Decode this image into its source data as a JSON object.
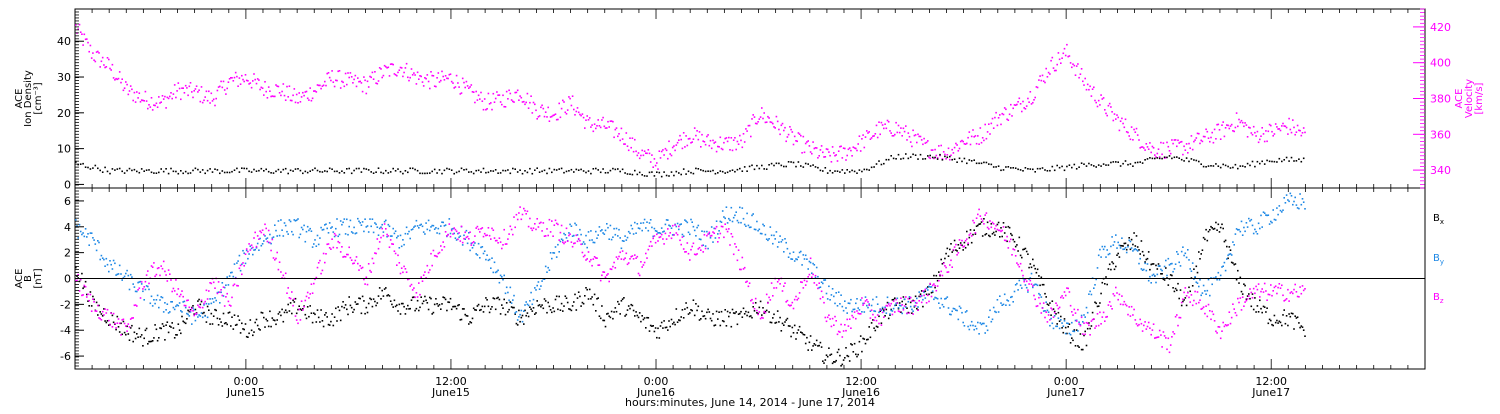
{
  "colors": {
    "black": "#000000",
    "magenta": "#ff00ff",
    "blue": "#1e88e5",
    "frame": "#000000"
  },
  "xaxis": {
    "title": "hours:minutes, June 14, 2014 - June 17, 2014",
    "range_hours": [
      0,
      79
    ],
    "tick_labels": [
      {
        "t": 10,
        "time": "0:00",
        "day": "June15"
      },
      {
        "t": 22,
        "time": "12:00",
        "day": "June15"
      },
      {
        "t": 34,
        "time": "0:00",
        "day": "June16"
      },
      {
        "t": 46,
        "time": "12:00",
        "day": "June16"
      },
      {
        "t": 58,
        "time": "0:00",
        "day": "June17"
      },
      {
        "t": 70,
        "time": "12:00",
        "day": "June17"
      }
    ]
  },
  "chart_data": [
    {
      "type": "scatter",
      "panel": "top",
      "left_axis": {
        "label_lines": [
          "ACE",
          "Ion Density",
          "[cm⁻³]"
        ],
        "ylim": [
          -1,
          49
        ],
        "ticks": [
          0,
          10,
          20,
          30,
          40
        ]
      },
      "right_axis": {
        "label_lines": [
          "ACE",
          "Velocity",
          "[km/s]"
        ],
        "ylim": [
          330,
          430
        ],
        "ticks": [
          340,
          360,
          380,
          400,
          420
        ]
      },
      "series": [
        {
          "axis": "right",
          "color": "#ff00ff",
          "x": [
            0,
            1,
            2,
            3,
            4,
            5,
            6,
            7,
            8,
            9,
            10,
            11,
            12,
            13,
            14,
            15,
            16,
            17,
            18,
            19,
            20,
            21,
            22,
            23,
            24,
            25,
            26,
            27,
            28,
            29,
            30,
            31,
            32,
            33,
            34,
            35,
            36,
            37,
            38,
            39,
            40,
            41,
            42,
            43,
            44,
            45,
            46,
            47,
            48,
            49,
            50,
            51,
            52,
            53,
            54,
            55,
            56,
            57,
            58,
            59,
            60,
            61,
            62,
            63,
            64,
            65,
            66,
            67,
            68,
            69,
            70,
            71,
            72
          ],
          "y": [
            420,
            405,
            398,
            385,
            380,
            378,
            385,
            384,
            380,
            390,
            392,
            386,
            385,
            380,
            385,
            392,
            390,
            388,
            395,
            398,
            392,
            390,
            392,
            384,
            378,
            380,
            384,
            374,
            372,
            378,
            366,
            365,
            360,
            350,
            345,
            355,
            360,
            356,
            355,
            356,
            372,
            366,
            358,
            352,
            348,
            350,
            356,
            363,
            364,
            358,
            352,
            350,
            357,
            360,
            370,
            375,
            383,
            398,
            406,
            390,
            378,
            368,
            360,
            352,
            352,
            354,
            358,
            362,
            368,
            360,
            362,
            365,
            360
          ]
        },
        {
          "axis": "left",
          "color": "#000000",
          "x": [
            0,
            2,
            4,
            6,
            8,
            10,
            12,
            14,
            16,
            18,
            20,
            22,
            24,
            26,
            28,
            30,
            32,
            34,
            36,
            38,
            40,
            42,
            44,
            46,
            48,
            50,
            52,
            54,
            56,
            58,
            60,
            62,
            64,
            66,
            68,
            70,
            72
          ],
          "y": [
            6,
            4,
            4,
            4,
            4,
            4,
            4,
            4,
            4,
            4,
            4,
            4,
            4,
            4,
            4,
            4,
            4,
            3,
            4,
            4,
            5,
            6,
            4,
            4,
            8,
            8,
            7,
            5,
            4,
            5,
            6,
            6,
            8,
            6,
            5,
            7,
            7
          ]
        }
      ]
    },
    {
      "type": "scatter",
      "panel": "bottom",
      "left_axis": {
        "label_lines": [
          "ACE",
          "B",
          "[nT]"
        ],
        "ylim": [
          -7,
          7
        ],
        "ticks": [
          -6,
          -4,
          -2,
          0,
          2,
          4,
          6
        ]
      },
      "series": [
        {
          "name": "Bx",
          "legend_main": "B",
          "legend_sub": "x",
          "color": "#000000",
          "x": [
            0,
            1,
            2,
            3,
            4,
            5,
            6,
            7,
            8,
            9,
            10,
            11,
            12,
            13,
            14,
            15,
            16,
            17,
            18,
            19,
            20,
            21,
            22,
            23,
            24,
            25,
            26,
            27,
            28,
            29,
            30,
            31,
            32,
            33,
            34,
            35,
            36,
            37,
            38,
            39,
            40,
            41,
            42,
            43,
            44,
            45,
            46,
            47,
            48,
            49,
            50,
            51,
            52,
            53,
            54,
            55,
            56,
            57,
            58,
            59,
            60,
            61,
            62,
            63,
            64,
            65,
            66,
            67,
            68,
            69,
            70,
            71,
            72
          ],
          "y": [
            1,
            -2,
            -3,
            -4,
            -4.5,
            -4,
            -4,
            -2,
            -3,
            -3,
            -4,
            -3,
            -3,
            -2,
            -3,
            -3,
            -2,
            -2,
            -1,
            -2,
            -2,
            -2,
            -2,
            -3,
            -2,
            -2,
            -3,
            -2,
            -2,
            -2,
            -1,
            -3,
            -2,
            -3,
            -4,
            -3,
            -2,
            -3,
            -3,
            -3,
            -2,
            -3,
            -4,
            -5,
            -6,
            -6,
            -5,
            -3,
            -2,
            -2,
            -1,
            2,
            3,
            4,
            4,
            3,
            1,
            -2,
            -4,
            -5,
            -1,
            2,
            3,
            1,
            0,
            -2,
            3,
            4,
            0,
            -2,
            -3,
            -3,
            -4
          ]
        },
        {
          "name": "By",
          "legend_main": "B",
          "legend_sub": "y",
          "color": "#1e88e5",
          "x": [
            0,
            1,
            2,
            3,
            4,
            5,
            6,
            7,
            8,
            9,
            10,
            11,
            12,
            13,
            14,
            15,
            16,
            17,
            18,
            19,
            20,
            21,
            22,
            23,
            24,
            25,
            26,
            27,
            28,
            29,
            30,
            31,
            32,
            33,
            34,
            35,
            36,
            37,
            38,
            39,
            40,
            41,
            42,
            43,
            44,
            45,
            46,
            47,
            48,
            49,
            50,
            51,
            52,
            53,
            54,
            55,
            56,
            57,
            58,
            59,
            60,
            61,
            62,
            63,
            64,
            65,
            66,
            67,
            68,
            69,
            70,
            71,
            72
          ],
          "y": [
            4,
            3,
            1,
            0,
            -1,
            -2,
            -2,
            -3,
            -2,
            0,
            2,
            3,
            4,
            4,
            3,
            4,
            4,
            4,
            4,
            3,
            4,
            4,
            4,
            3,
            2,
            0,
            -3,
            -1,
            2,
            4,
            3,
            4,
            3,
            4,
            4,
            4,
            4,
            3,
            5,
            5,
            4,
            3,
            2,
            1,
            -1,
            -2,
            -2,
            -2,
            -2,
            -2,
            -1,
            -2,
            -3,
            -4,
            -2,
            -1,
            0,
            -3,
            -4,
            -3,
            2,
            3,
            2,
            0,
            1,
            2,
            -1,
            0,
            4,
            4,
            5,
            6,
            6
          ]
        },
        {
          "name": "Bz",
          "legend_main": "B",
          "legend_sub": "z",
          "color": "#ff00ff",
          "x": [
            0,
            1,
            2,
            3,
            4,
            5,
            6,
            7,
            8,
            9,
            10,
            11,
            12,
            13,
            14,
            15,
            16,
            17,
            18,
            19,
            20,
            21,
            22,
            23,
            24,
            25,
            26,
            27,
            28,
            29,
            30,
            31,
            32,
            33,
            34,
            35,
            36,
            37,
            38,
            39,
            40,
            41,
            42,
            43,
            44,
            45,
            46,
            47,
            48,
            49,
            50,
            51,
            52,
            53,
            54,
            55,
            56,
            57,
            58,
            59,
            60,
            61,
            62,
            63,
            64,
            65,
            66,
            67,
            68,
            69,
            70,
            71,
            72
          ],
          "y": [
            0,
            -2,
            -3,
            -4,
            0,
            1,
            -1,
            -3,
            0,
            -2,
            2,
            4,
            1,
            -3,
            0,
            3,
            2,
            0,
            4,
            1,
            -1,
            2,
            4,
            3,
            4,
            3,
            5,
            4,
            4,
            3,
            2,
            0,
            2,
            1,
            3,
            4,
            2,
            3,
            4,
            1,
            -3,
            0,
            -2,
            1,
            -3,
            -4,
            -2,
            -3,
            -2,
            -2,
            -1,
            1,
            3,
            5,
            4,
            2,
            -1,
            -3,
            -1,
            -4,
            -3,
            -1,
            -3,
            -4,
            -5,
            -1,
            -2,
            -4,
            -2,
            -1,
            -1,
            -1,
            -1
          ]
        }
      ]
    }
  ]
}
